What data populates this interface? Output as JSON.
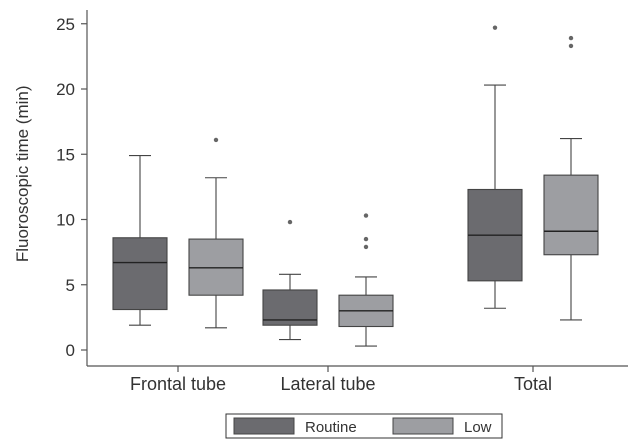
{
  "chart_data": {
    "type": "boxplot",
    "ylabel": "Fluoroscopic time (min)",
    "ylim": [
      0,
      26
    ],
    "yticks": [
      0,
      5,
      10,
      15,
      20,
      25
    ],
    "categories": [
      "Frontal tube",
      "Lateral tube",
      "Total"
    ],
    "legend": {
      "placement": "bottom-center"
    },
    "series": [
      {
        "name": "Routine",
        "color": "#6b6b6f",
        "boxes": [
          {
            "min": 1.9,
            "q1": 3.1,
            "median": 6.7,
            "q3": 8.6,
            "max": 14.9,
            "outliers": []
          },
          {
            "min": 0.8,
            "q1": 1.9,
            "median": 2.3,
            "q3": 4.6,
            "max": 5.8,
            "outliers": [
              9.8
            ]
          },
          {
            "min": 3.2,
            "q1": 5.3,
            "median": 8.8,
            "q3": 12.3,
            "max": 20.3,
            "outliers": [
              24.7
            ]
          }
        ]
      },
      {
        "name": "Low",
        "color": "#9d9ea2",
        "boxes": [
          {
            "min": 1.7,
            "q1": 4.2,
            "median": 6.3,
            "q3": 8.5,
            "max": 13.2,
            "outliers": [
              16.1
            ]
          },
          {
            "min": 0.3,
            "q1": 1.8,
            "median": 3.0,
            "q3": 4.2,
            "max": 5.6,
            "outliers": [
              7.9,
              8.5,
              10.3
            ]
          },
          {
            "min": 2.3,
            "q1": 7.3,
            "median": 9.1,
            "q3": 13.4,
            "max": 16.2,
            "outliers": [
              23.3,
              23.9
            ]
          }
        ]
      }
    ]
  }
}
